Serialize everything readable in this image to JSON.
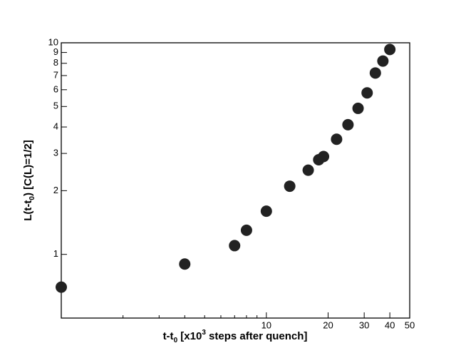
{
  "chart_data": {
    "type": "scatter",
    "log_x": true,
    "log_y": true,
    "x": [
      1,
      4,
      7,
      8,
      10,
      13,
      16,
      18,
      19,
      22,
      25,
      28,
      31,
      34,
      37,
      40
    ],
    "values": [
      0.7,
      0.9,
      1.1,
      1.3,
      1.6,
      2.1,
      2.5,
      2.8,
      2.9,
      3.5,
      4.1,
      4.9,
      5.8,
      7.2,
      8.2,
      9.3
    ],
    "color": "#222222",
    "xlim": [
      1,
      50
    ],
    "xticks": [
      10,
      20,
      30,
      40,
      50
    ],
    "xminor_ticks": [
      2,
      3,
      4,
      5,
      6,
      7,
      8,
      9
    ],
    "ylim": [
      0.5,
      10
    ],
    "yticks": [
      1,
      2,
      3,
      4,
      5,
      6,
      7,
      8,
      9,
      10
    ],
    "xlabel": [
      {
        "text": "t-t"
      },
      {
        "text": "0",
        "shift": "sub"
      },
      {
        "text": " [x10"
      },
      {
        "text": "3",
        "shift": "super"
      },
      {
        "text": " steps after quench]"
      }
    ],
    "ylabel": [
      {
        "text": "L(t-t"
      },
      {
        "text": "0",
        "shift": "sub"
      },
      {
        "text": ") [C(L)=1/2]"
      }
    ]
  }
}
